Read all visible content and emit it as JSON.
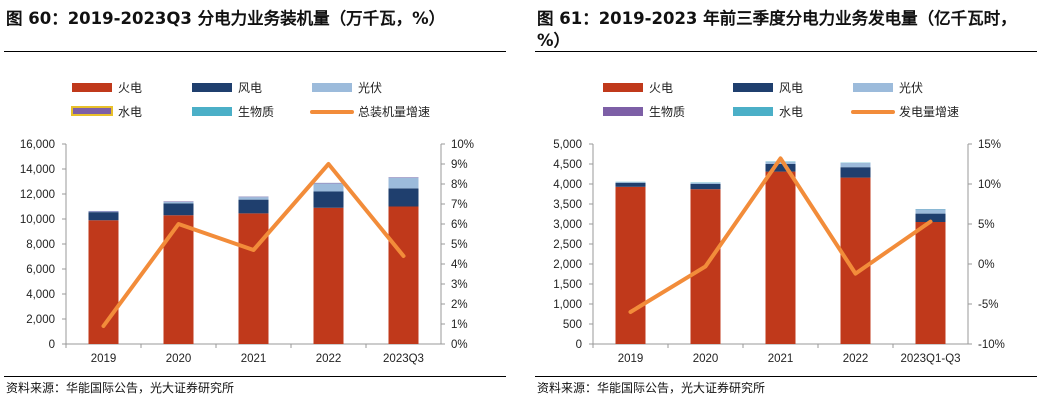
{
  "figures": [
    {
      "title": "图 60：2019-2023Q3 分电力业务装机量（万千瓦，%）",
      "source": "资料来源：华能国际公告，光大证券研究所",
      "legend": [
        {
          "label": "火电",
          "color": "#c0391b",
          "shape": "bar"
        },
        {
          "label": "风电",
          "color": "#1f3f6e",
          "shape": "bar"
        },
        {
          "label": "光伏",
          "color": "#9cbbdb",
          "shape": "bar"
        },
        {
          "label": "水电",
          "color": "#7d5fa6",
          "shape": "bar-outlined",
          "outline": "#e8c02a"
        },
        {
          "label": "生物质",
          "color": "#4bafc7",
          "shape": "bar"
        },
        {
          "label": "总装机量增速",
          "color": "#f28c3a",
          "shape": "line"
        }
      ]
    },
    {
      "title": "图 61：2019-2023 年前三季度分电力业务发电量（亿千瓦时，%）",
      "source": "资料来源：华能国际公告，光大证券研究所",
      "legend": [
        {
          "label": "火电",
          "color": "#c0391b",
          "shape": "bar"
        },
        {
          "label": "风电",
          "color": "#1f3f6e",
          "shape": "bar"
        },
        {
          "label": "光伏",
          "color": "#9cbbdb",
          "shape": "bar"
        },
        {
          "label": "生物质",
          "color": "#7d5fa6",
          "shape": "bar"
        },
        {
          "label": "水电",
          "color": "#4bafc7",
          "shape": "bar"
        },
        {
          "label": "发电量增速",
          "color": "#f28c3a",
          "shape": "line"
        }
      ]
    }
  ],
  "chart_data": [
    {
      "type": "bar",
      "stacked": true,
      "categories": [
        "2019",
        "2020",
        "2021",
        "2022",
        "2023Q3"
      ],
      "series": [
        {
          "name": "火电",
          "color": "#c0391b",
          "values": [
            9900,
            10300,
            10450,
            10900,
            11000
          ]
        },
        {
          "name": "风电",
          "color": "#1f3f6e",
          "values": [
            650,
            950,
            1100,
            1300,
            1450
          ]
        },
        {
          "name": "光伏",
          "color": "#9cbbdb",
          "values": [
            50,
            120,
            200,
            650,
            850
          ]
        },
        {
          "name": "水电",
          "color": "#7d5fa6",
          "values": [
            37,
            37,
            37,
            37,
            37
          ]
        },
        {
          "name": "生物质",
          "color": "#4bafc7",
          "values": [
            5,
            5,
            5,
            5,
            5
          ]
        }
      ],
      "line": {
        "name": "总装机量增速",
        "color": "#f28c3a",
        "axis": "right",
        "values": [
          0.9,
          6.0,
          4.7,
          9.0,
          4.4
        ]
      },
      "ylim": [
        0,
        16000
      ],
      "yticks": [
        "0",
        "2,000",
        "4,000",
        "6,000",
        "8,000",
        "10,000",
        "12,000",
        "14,000",
        "16,000"
      ],
      "y2lim": [
        0,
        10
      ],
      "y2ticks": [
        "0%",
        "1%",
        "2%",
        "3%",
        "4%",
        "5%",
        "6%",
        "7%",
        "8%",
        "9%",
        "10%"
      ]
    },
    {
      "type": "bar",
      "stacked": true,
      "categories": [
        "2019",
        "2020",
        "2021",
        "2022",
        "2023Q1-Q3"
      ],
      "series": [
        {
          "name": "火电",
          "color": "#c0391b",
          "values": [
            3930,
            3870,
            4310,
            4160,
            3050
          ]
        },
        {
          "name": "风电",
          "color": "#1f3f6e",
          "values": [
            100,
            130,
            190,
            260,
            210
          ]
        },
        {
          "name": "光伏",
          "color": "#9cbbdb",
          "values": [
            12,
            25,
            50,
            100,
            100
          ]
        },
        {
          "name": "生物质",
          "color": "#7d5fa6",
          "values": [
            3,
            3,
            3,
            3,
            3
          ]
        },
        {
          "name": "水电",
          "color": "#4bafc7",
          "values": [
            10,
            10,
            10,
            10,
            10
          ]
        }
      ],
      "line": {
        "name": "发电量增速",
        "color": "#f28c3a",
        "axis": "right",
        "values": [
          -6.0,
          -0.3,
          13.2,
          -1.2,
          5.3
        ]
      },
      "ylim": [
        0,
        5000
      ],
      "yticks": [
        "0",
        "500",
        "1,000",
        "1,500",
        "2,000",
        "2,500",
        "3,000",
        "3,500",
        "4,000",
        "4,500",
        "5,000"
      ],
      "y2lim": [
        -10,
        15
      ],
      "y2ticks": [
        "-10%",
        "-5%",
        "0%",
        "5%",
        "10%",
        "15%"
      ]
    }
  ]
}
